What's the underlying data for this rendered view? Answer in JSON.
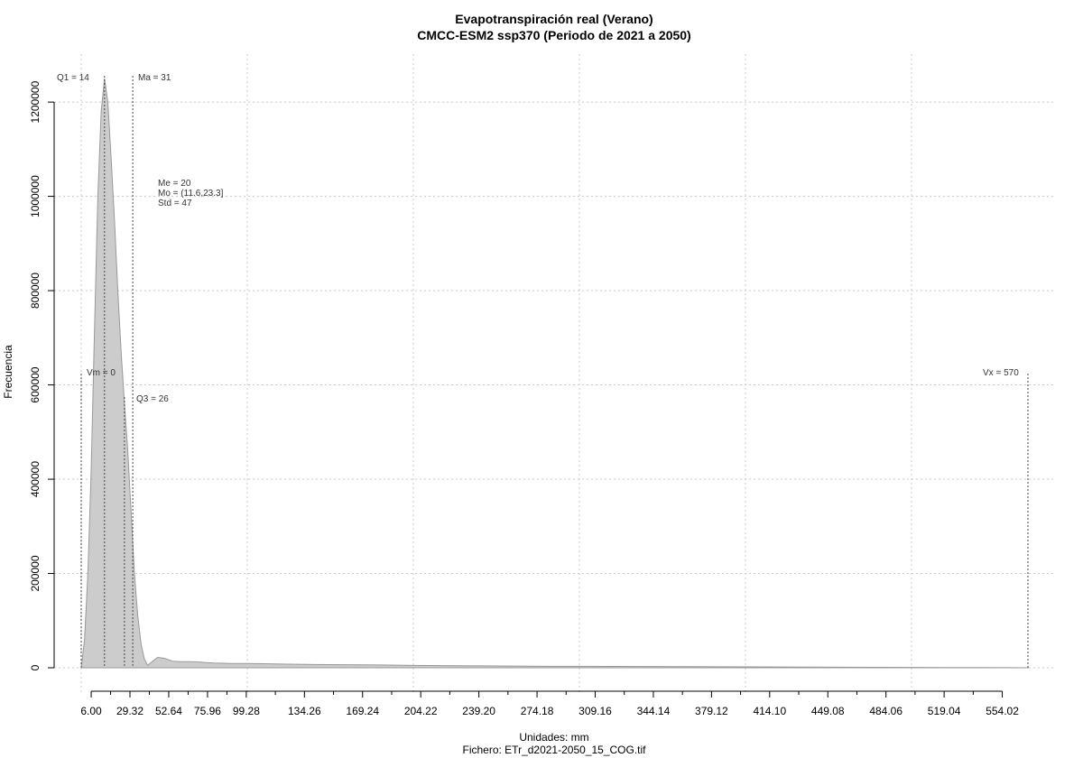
{
  "chart_data": {
    "type": "area",
    "title": "Evapotranspiración real (Verano)",
    "subtitle": "CMCC-ESM2 ssp370 (Periodo de 2021 a 2050)",
    "xlabel": "Unidades: mm",
    "caption": "Fichero: ETr_d2021-2050_15_COG.tif",
    "ylabel": "Frecuencia",
    "xlim": [
      0,
      570
    ],
    "ylim": [
      0,
      1250000
    ],
    "x_ticks": [
      6.0,
      29.32,
      52.64,
      75.96,
      99.28,
      134.26,
      169.24,
      204.22,
      239.2,
      274.18,
      309.16,
      344.14,
      379.12,
      414.1,
      449.08,
      484.06,
      519.04,
      554.02
    ],
    "x_tick_labels": [
      "6.00",
      "29.32",
      "52.64",
      "75.96",
      "99.28",
      "134.26",
      "169.24",
      "204.22",
      "239.20",
      "274.18",
      "309.16",
      "344.14",
      "379.12",
      "414.10",
      "449.08",
      "484.06",
      "519.04",
      "554.02"
    ],
    "y_ticks": [
      0,
      200000,
      400000,
      600000,
      800000,
      1000000,
      1200000
    ],
    "y_tick_labels": [
      "0",
      "200000",
      "400000",
      "600000",
      "800000",
      "1000000",
      "1200000"
    ],
    "grid": true,
    "fill_color": "#cccccc",
    "line_color": "#999999",
    "series": [
      {
        "x": [
          0,
          2,
          4,
          6,
          8,
          10,
          12,
          14,
          16,
          18,
          20,
          22,
          24,
          26,
          28,
          30,
          32,
          34,
          36,
          38,
          40,
          43,
          46,
          50,
          55,
          60,
          65,
          70,
          75,
          80,
          90,
          100,
          110,
          120,
          140,
          160,
          180,
          200,
          220,
          240,
          260,
          280,
          300,
          320,
          340,
          360,
          380,
          400,
          420,
          440,
          460,
          480,
          500,
          520,
          540,
          560,
          570
        ],
        "y": [
          0,
          60000,
          200000,
          420000,
          720000,
          1000000,
          1180000,
          1250000,
          1200000,
          1080000,
          950000,
          800000,
          670000,
          560000,
          460000,
          330000,
          200000,
          110000,
          50000,
          18000,
          5000,
          14000,
          22000,
          20000,
          14000,
          13000,
          13000,
          12500,
          11000,
          10000,
          9000,
          9000,
          8500,
          8000,
          7000,
          6500,
          6000,
          5000,
          4500,
          4000,
          3500,
          3200,
          3000,
          2800,
          2600,
          2400,
          2200,
          2000,
          1600,
          1400,
          1200,
          1000,
          800,
          600,
          400,
          200,
          0
        ]
      }
    ],
    "annotations": {
      "q1": {
        "label": "Q1 = 14",
        "x": 14
      },
      "ma": {
        "label": "Ma = 31",
        "x": 31
      },
      "stats": {
        "me": "Me = 20",
        "mo": "Mo = (11.6,23.3]",
        "std": "Std = 47"
      },
      "vm": {
        "label": "Vm = 0",
        "x": 0
      },
      "q3": {
        "label": "Q3 = 26",
        "x": 26
      },
      "vx": {
        "label": "Vx = 570",
        "x": 570
      }
    }
  }
}
